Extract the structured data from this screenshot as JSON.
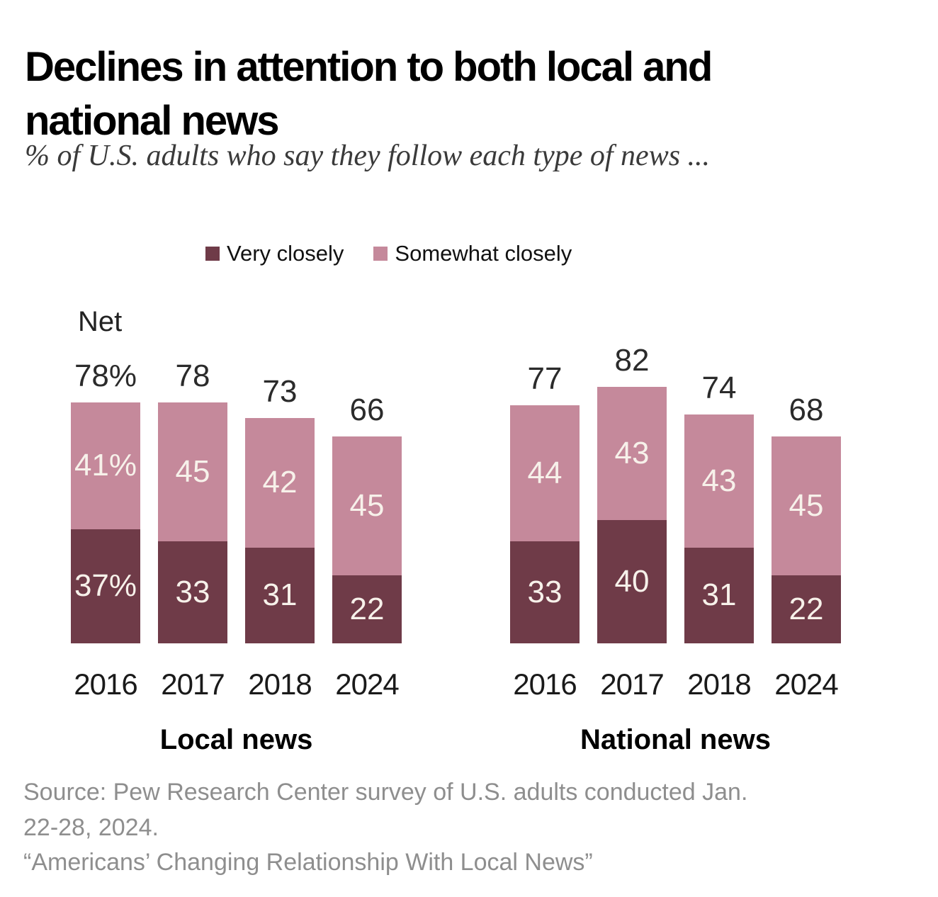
{
  "header": {
    "title_lines": [
      "Declines in attention to both local and",
      "national news"
    ],
    "subtitle": "% of U.S. adults who say they follow each type of news ..."
  },
  "legend": {
    "items": [
      {
        "label": "Very closely",
        "color": "#6F3B48"
      },
      {
        "label": "Somewhat closely",
        "color": "#C5899B"
      }
    ]
  },
  "chart_data": {
    "type": "bar",
    "stacked": true,
    "ylim": [
      0,
      100
    ],
    "unit": "%",
    "net_label": "Net",
    "colors": {
      "Very closely": "#6F3B48",
      "Somewhat closely": "#C5899B"
    },
    "panels": [
      {
        "title": "Local news",
        "categories": [
          "2016",
          "2017",
          "2018",
          "2024"
        ],
        "series": [
          {
            "name": "Very closely",
            "values": [
              37,
              33,
              31,
              22
            ],
            "labels": [
              "37%",
              "33",
              "31",
              "22"
            ]
          },
          {
            "name": "Somewhat closely",
            "values": [
              41,
              45,
              42,
              45
            ],
            "labels": [
              "41%",
              "45",
              "42",
              "45"
            ]
          }
        ],
        "net": {
          "values": [
            78,
            78,
            73,
            66
          ],
          "labels": [
            "78%",
            "78",
            "73",
            "66"
          ]
        }
      },
      {
        "title": "National news",
        "categories": [
          "2016",
          "2017",
          "2018",
          "2024"
        ],
        "series": [
          {
            "name": "Very closely",
            "values": [
              33,
              40,
              31,
              22
            ],
            "labels": [
              "33",
              "40",
              "31",
              "22"
            ]
          },
          {
            "name": "Somewhat closely",
            "values": [
              44,
              43,
              43,
              45
            ],
            "labels": [
              "44",
              "43",
              "43",
              "45"
            ]
          }
        ],
        "net": {
          "values": [
            77,
            82,
            74,
            68
          ],
          "labels": [
            "77",
            "82",
            "74",
            "68"
          ]
        }
      }
    ]
  },
  "footer": {
    "lines": [
      "Source: Pew Research Center survey of U.S. adults conducted Jan.",
      "22-28, 2024.",
      "“Americans’ Changing Relationship With Local News”"
    ]
  }
}
